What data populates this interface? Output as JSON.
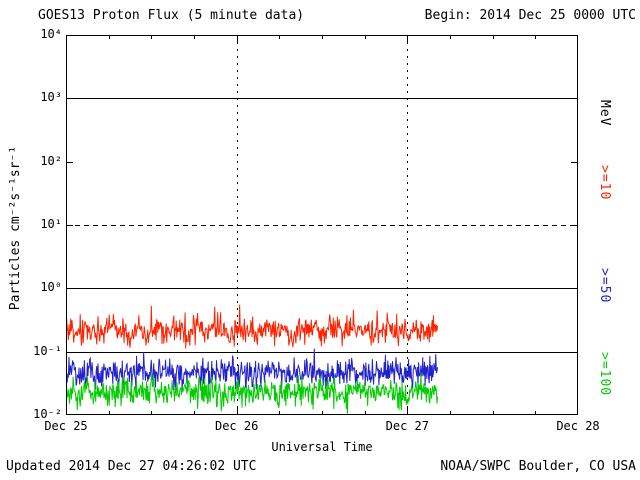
{
  "header": {
    "begin_label": "Begin: 2014 Dec 25 0000 UTC"
  },
  "footer": {
    "updated": "Updated 2014 Dec 27 04:26:02 UTC",
    "source": "NOAA/SWPC Boulder, CO USA"
  },
  "chart_data": {
    "type": "line",
    "title": "GOES13 Proton Flux (5 minute data)",
    "xlabel": "Universal Time",
    "ylabel": "Particles cm⁻²s⁻¹sr⁻¹",
    "axis_right_unit": "MeV",
    "x_tick_labels": [
      "Dec 25",
      "Dec 26",
      "Dec 27",
      "Dec 28"
    ],
    "y_tick_labels": [
      "10⁴",
      "10³",
      "10²",
      "10¹",
      "10⁰",
      "10⁻¹",
      "10⁻²"
    ],
    "y_log_range": [
      -2,
      4
    ],
    "x_hours_total": 72,
    "end_hours": 52.3,
    "axis_color": "#000000",
    "background": "#ffffff",
    "grid": {
      "vertical_dashed_days": [
        1,
        2
      ],
      "hlines_solid": [
        1000,
        1,
        0.1
      ],
      "hlines_dashed": [
        10
      ]
    },
    "series": [
      {
        "name": ">=10 MeV protons",
        "label": ">=10",
        "color": "#ff2200",
        "hourly_flux": [
          0.2,
          0.22,
          0.18,
          0.24,
          0.21,
          0.19,
          0.23,
          0.26,
          0.2,
          0.17,
          0.23,
          0.2,
          0.22,
          0.25,
          0.19,
          0.21,
          0.24,
          0.18,
          0.2,
          0.23,
          0.19,
          0.25,
          0.21,
          0.18,
          0.23,
          0.2,
          0.22,
          0.19,
          0.26,
          0.22,
          0.2,
          0.21,
          0.17,
          0.24,
          0.2,
          0.23,
          0.19,
          0.22,
          0.25,
          0.2,
          0.23,
          0.2,
          0.24,
          0.18,
          0.21,
          0.24,
          0.19,
          0.22,
          0.18,
          0.23,
          0.2,
          0.24,
          0.21,
          0.2
        ]
      },
      {
        "name": ">=50 MeV protons",
        "label": ">=50",
        "color": "#2222cc",
        "hourly_flux": [
          0.045,
          0.05,
          0.042,
          0.052,
          0.047,
          0.043,
          0.05,
          0.046,
          0.041,
          0.049,
          0.045,
          0.051,
          0.043,
          0.047,
          0.05,
          0.044,
          0.051,
          0.041,
          0.047,
          0.05,
          0.043,
          0.048,
          0.046,
          0.052,
          0.042,
          0.047,
          0.045,
          0.049,
          0.043,
          0.051,
          0.047,
          0.044,
          0.049,
          0.042,
          0.048,
          0.05,
          0.045,
          0.048,
          0.043,
          0.047,
          0.051,
          0.044,
          0.048,
          0.042,
          0.049,
          0.046,
          0.051,
          0.043,
          0.048,
          0.045,
          0.049,
          0.047,
          0.044,
          0.047
        ]
      },
      {
        "name": ">=100 MeV protons",
        "label": ">=100",
        "color": "#00cc00",
        "hourly_flux": [
          0.023,
          0.025,
          0.021,
          0.026,
          0.022,
          0.024,
          0.02,
          0.025,
          0.023,
          0.021,
          0.026,
          0.022,
          0.024,
          0.023,
          0.02,
          0.025,
          0.022,
          0.026,
          0.021,
          0.024,
          0.023,
          0.025,
          0.02,
          0.023,
          0.026,
          0.021,
          0.024,
          0.022,
          0.025,
          0.023,
          0.02,
          0.024,
          0.022,
          0.026,
          0.021,
          0.023,
          0.025,
          0.022,
          0.024,
          0.02,
          0.023,
          0.026,
          0.022,
          0.024,
          0.021,
          0.025,
          0.023,
          0.02,
          0.024,
          0.022,
          0.025,
          0.023,
          0.021,
          0.024
        ]
      }
    ],
    "render": {
      "seed": 20141227,
      "step_hours": 0.083333,
      "noise": [
        {
          "sd": 0.1,
          "spike_p": 0.06,
          "spike_amp": 0.32
        },
        {
          "sd": 0.11,
          "spike_p": 0.04,
          "spike_amp": 0.22
        },
        {
          "sd": 0.11,
          "spike_p": 0.04,
          "spike_amp": 0.2
        }
      ]
    }
  }
}
